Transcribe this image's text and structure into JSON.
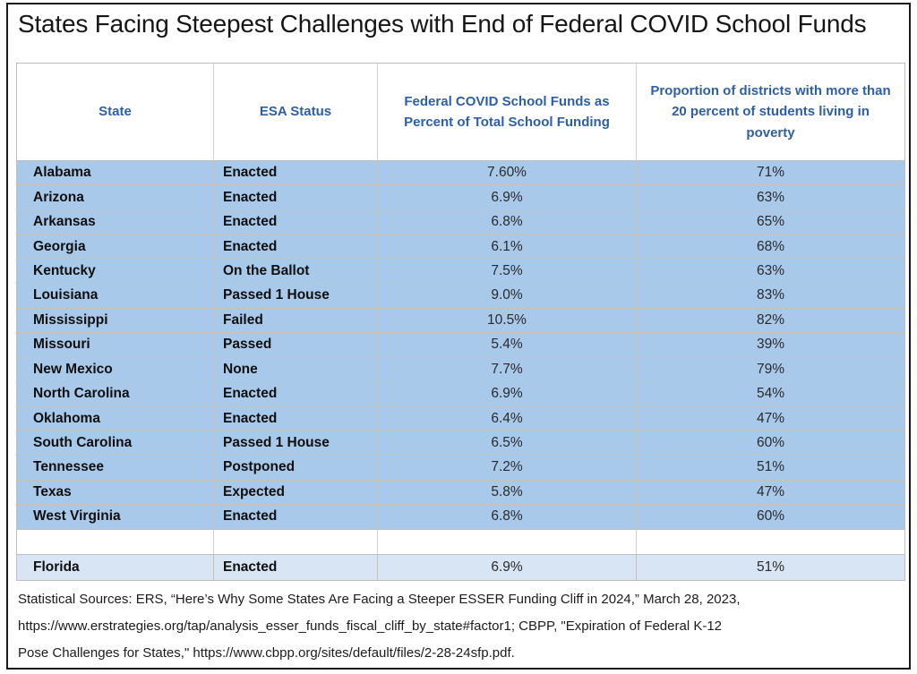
{
  "title": "States Facing Steepest Challenges with End of Federal COVID School Funds",
  "table": {
    "headers": [
      "State",
      "ESA Status",
      "Federal COVID School Funds as Percent of Total School Funding",
      "Proportion of districts with more than 20 percent of students living in poverty"
    ],
    "rows": [
      {
        "state": "Alabama",
        "esa_status": "Enacted",
        "funds_pct": "7.60%",
        "poverty_pct": "71%"
      },
      {
        "state": "Arizona",
        "esa_status": "Enacted",
        "funds_pct": "6.9%",
        "poverty_pct": "63%"
      },
      {
        "state": "Arkansas",
        "esa_status": "Enacted",
        "funds_pct": "6.8%",
        "poverty_pct": "65%"
      },
      {
        "state": "Georgia",
        "esa_status": "Enacted",
        "funds_pct": "6.1%",
        "poverty_pct": "68%"
      },
      {
        "state": "Kentucky",
        "esa_status": "On the Ballot",
        "funds_pct": "7.5%",
        "poverty_pct": "63%"
      },
      {
        "state": "Louisiana",
        "esa_status": "Passed 1 House",
        "funds_pct": "9.0%",
        "poverty_pct": "83%"
      },
      {
        "state": "Mississippi",
        "esa_status": "Failed",
        "funds_pct": "10.5%",
        "poverty_pct": "82%"
      },
      {
        "state": "Missouri",
        "esa_status": "Passed",
        "funds_pct": "5.4%",
        "poverty_pct": "39%"
      },
      {
        "state": "New Mexico",
        "esa_status": "None",
        "funds_pct": "7.7%",
        "poverty_pct": "79%"
      },
      {
        "state": "North Carolina",
        "esa_status": "Enacted",
        "funds_pct": "6.9%",
        "poverty_pct": "54%"
      },
      {
        "state": "Oklahoma",
        "esa_status": "Enacted",
        "funds_pct": "6.4%",
        "poverty_pct": "47%"
      },
      {
        "state": "South Carolina",
        "esa_status": "Passed 1 House",
        "funds_pct": "6.5%",
        "poverty_pct": "60%"
      },
      {
        "state": "Tennessee",
        "esa_status": "Postponed",
        "funds_pct": "7.2%",
        "poverty_pct": "51%"
      },
      {
        "state": "Texas",
        "esa_status": "Expected",
        "funds_pct": "5.8%",
        "poverty_pct": "47%"
      },
      {
        "state": "West Virginia",
        "esa_status": "Enacted",
        "funds_pct": "6.8%",
        "poverty_pct": "60%"
      }
    ],
    "highlight_row": {
      "state": "Florida",
      "esa_status": "Enacted",
      "funds_pct": "6.9%",
      "poverty_pct": "51%"
    }
  },
  "footer": {
    "lines": [
      "Statistical Sources: ERS, “Here’s Why Some States Are Facing a Steeper ESSER Funding Cliff in 2024,” March 28, 2023,",
      "https://www.erstrategies.org/tap/analysis_esser_funds_fiscal_cliff_by_state#factor1; CBPP, \"Expiration of Federal K-12",
      "Pose Challenges for States,\" https://www.cbpp.org/sites/default/files/2-28-24sfp.pdf."
    ]
  },
  "colors": {
    "header_text": "#2d5fa6",
    "row_bg": "#a9c9eb",
    "highlight_row_bg": "#d8e5f4",
    "row_border": "#c9c2b1",
    "table_border": "#bfbfbf",
    "frame_border": "#1a1a1a"
  },
  "chart_data": {
    "type": "table",
    "title": "States Facing Steepest Challenges with End of Federal COVID School Funds",
    "columns": [
      "State",
      "ESA Status",
      "Federal COVID School Funds as Percent of Total School Funding",
      "Proportion of districts with more than 20 percent of students living in poverty"
    ],
    "rows": [
      [
        "Alabama",
        "Enacted",
        "7.60%",
        "71%"
      ],
      [
        "Arizona",
        "Enacted",
        "6.9%",
        "63%"
      ],
      [
        "Arkansas",
        "Enacted",
        "6.8%",
        "65%"
      ],
      [
        "Georgia",
        "Enacted",
        "6.1%",
        "68%"
      ],
      [
        "Kentucky",
        "On the Ballot",
        "7.5%",
        "63%"
      ],
      [
        "Louisiana",
        "Passed 1 House",
        "9.0%",
        "83%"
      ],
      [
        "Mississippi",
        "Failed",
        "10.5%",
        "82%"
      ],
      [
        "Missouri",
        "Passed",
        "5.4%",
        "39%"
      ],
      [
        "New Mexico",
        "None",
        "7.7%",
        "79%"
      ],
      [
        "North Carolina",
        "Enacted",
        "6.9%",
        "54%"
      ],
      [
        "Oklahoma",
        "Enacted",
        "6.4%",
        "47%"
      ],
      [
        "South Carolina",
        "Passed 1 House",
        "6.5%",
        "60%"
      ],
      [
        "Tennessee",
        "Postponed",
        "7.2%",
        "51%"
      ],
      [
        "Texas",
        "Expected",
        "5.8%",
        "47%"
      ],
      [
        "West Virginia",
        "Enacted",
        "6.8%",
        "60%"
      ],
      [
        "Florida",
        "Enacted",
        "6.9%",
        "51%"
      ]
    ],
    "highlighted_row": "Florida",
    "source_note": "Statistical Sources: ERS, “Here’s Why Some States Are Facing a Steeper ESSER Funding Cliff in 2024,” March 28, 2023, https://www.erstrategies.org/tap/analysis_esser_funds_fiscal_cliff_by_state#factor1; CBPP, \"Expiration of Federal K-12 Pose Challenges for States,\" https://www.cbpp.org/sites/default/files/2-28-24sfp.pdf."
  }
}
